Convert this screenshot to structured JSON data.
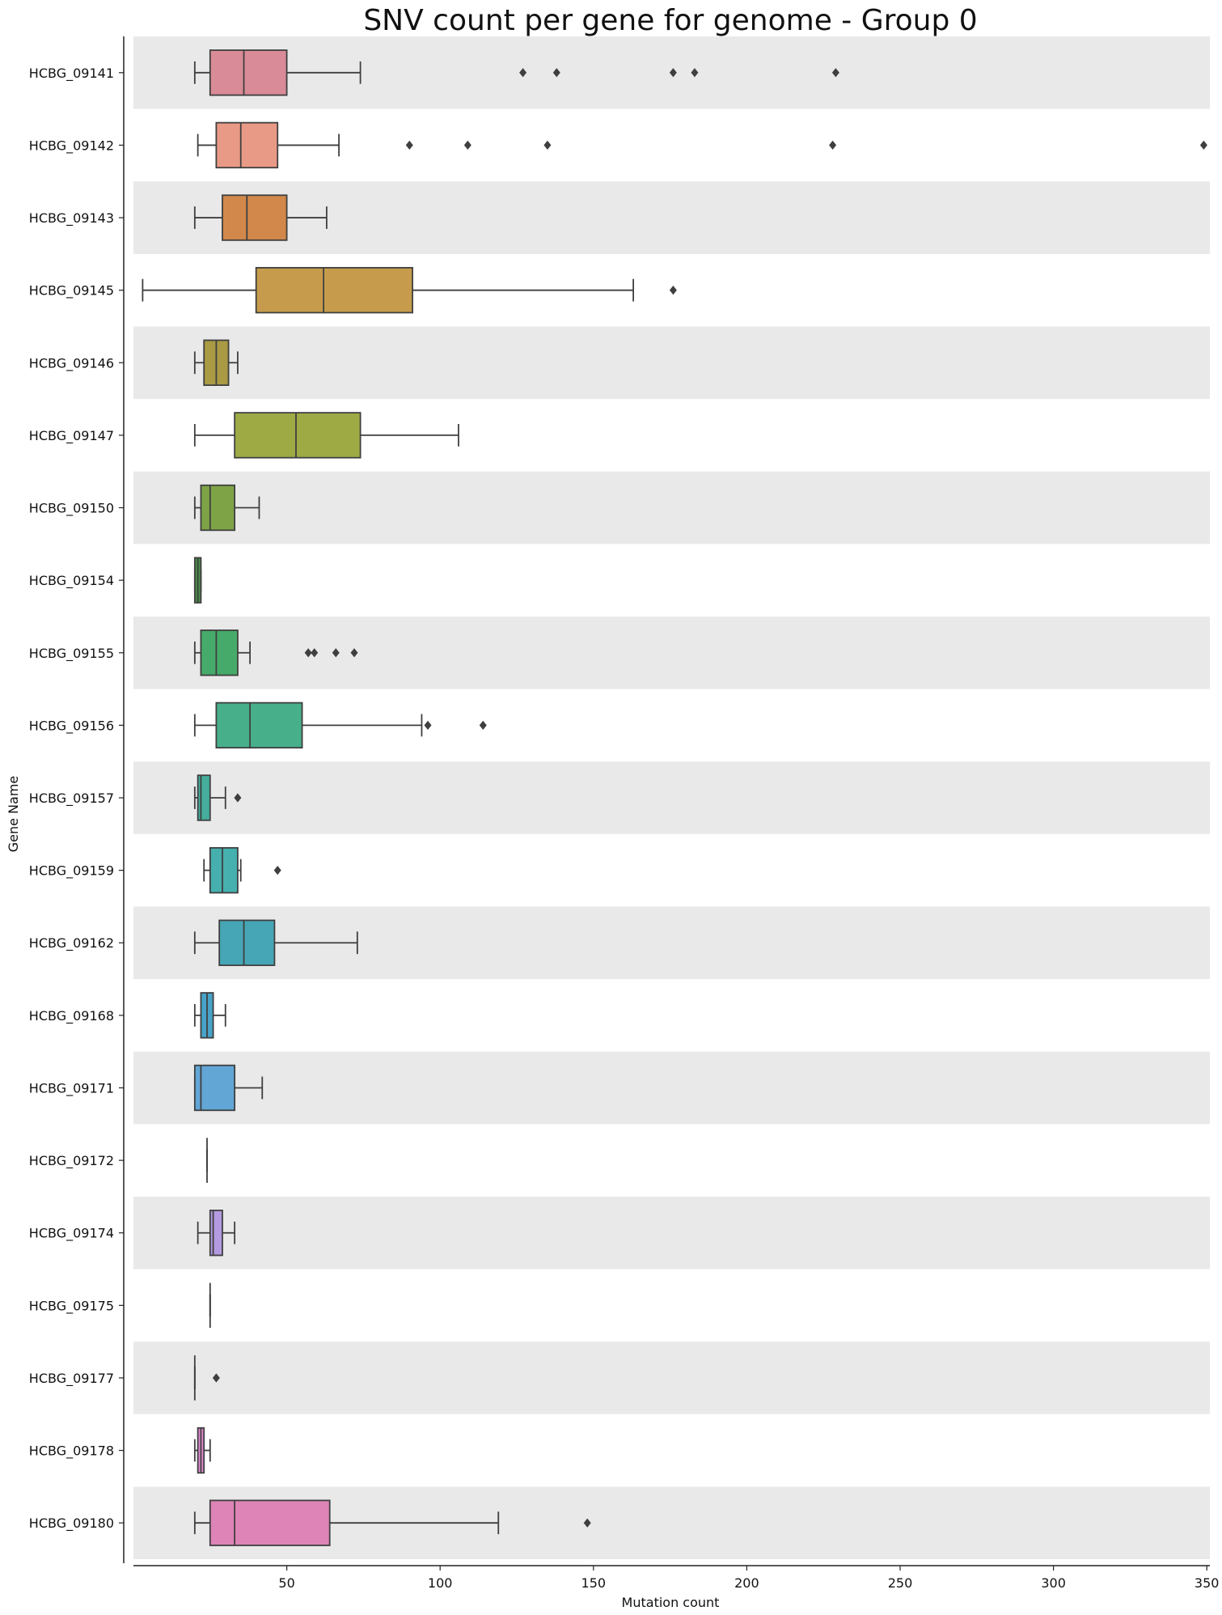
{
  "chart_data": {
    "type": "box",
    "title": "SNV count per gene for genome - Group 0",
    "xlabel": "Mutation count",
    "ylabel": "Gene Name",
    "xlim": [
      0,
      351
    ],
    "xticks": [
      50,
      100,
      150,
      200,
      250,
      300,
      350
    ],
    "grid": false,
    "series": [
      {
        "name": "HCBG_09141",
        "whislo": 20,
        "q1": 25,
        "median": 36,
        "q3": 50,
        "whishi": 74,
        "fliers": [
          127,
          138,
          176,
          183,
          229
        ],
        "color": "#d98b97"
      },
      {
        "name": "HCBG_09142",
        "whislo": 21,
        "q1": 27,
        "median": 35,
        "q3": 47,
        "whishi": 67,
        "fliers": [
          90,
          109,
          135,
          228,
          349
        ],
        "color": "#e89a86"
      },
      {
        "name": "HCBG_09143",
        "whislo": 20,
        "q1": 29,
        "median": 37,
        "q3": 50,
        "whishi": 63,
        "fliers": [],
        "color": "#d1884a"
      },
      {
        "name": "HCBG_09145",
        "whislo": 3,
        "q1": 40,
        "median": 62,
        "q3": 91,
        "whishi": 163,
        "fliers": [
          176
        ],
        "color": "#c69c4c"
      },
      {
        "name": "HCBG_09146",
        "whislo": 20,
        "q1": 23,
        "median": 27,
        "q3": 31,
        "whishi": 34,
        "fliers": [],
        "color": "#aa9a44"
      },
      {
        "name": "HCBG_09147",
        "whislo": 20,
        "q1": 33,
        "median": 53,
        "q3": 74,
        "whishi": 106,
        "fliers": [],
        "color": "#9eab45"
      },
      {
        "name": "HCBG_09150",
        "whislo": 20,
        "q1": 22,
        "median": 25,
        "q3": 33,
        "whishi": 41,
        "fliers": [],
        "color": "#7ea347"
      },
      {
        "name": "HCBG_09154",
        "whislo": 20,
        "q1": 20,
        "median": 21,
        "q3": 22,
        "whishi": 22,
        "fliers": [],
        "color": "#4a8f4a"
      },
      {
        "name": "HCBG_09155",
        "whislo": 20,
        "q1": 22,
        "median": 27,
        "q3": 34,
        "whishi": 38,
        "fliers": [
          57,
          59,
          66,
          72
        ],
        "color": "#46ab6a"
      },
      {
        "name": "HCBG_09156",
        "whislo": 20,
        "q1": 27,
        "median": 38,
        "q3": 55,
        "whishi": 94,
        "fliers": [
          96,
          114
        ],
        "color": "#47b08a"
      },
      {
        "name": "HCBG_09157",
        "whislo": 20,
        "q1": 21,
        "median": 22,
        "q3": 25,
        "whishi": 30,
        "fliers": [
          34
        ],
        "color": "#45ad9c"
      },
      {
        "name": "HCBG_09159",
        "whislo": 23,
        "q1": 25,
        "median": 29,
        "q3": 34,
        "whishi": 35,
        "fliers": [
          47
        ],
        "color": "#45b0ad"
      },
      {
        "name": "HCBG_09162",
        "whislo": 20,
        "q1": 28,
        "median": 36,
        "q3": 46,
        "whishi": 73,
        "fliers": [],
        "color": "#46a6b6"
      },
      {
        "name": "HCBG_09168",
        "whislo": 20,
        "q1": 22,
        "median": 24,
        "q3": 26,
        "whishi": 30,
        "fliers": [],
        "color": "#47a3c8"
      },
      {
        "name": "HCBG_09171",
        "whislo": 20,
        "q1": 20,
        "median": 22,
        "q3": 33,
        "whishi": 42,
        "fliers": [],
        "color": "#62a6d6"
      },
      {
        "name": "HCBG_09172",
        "whislo": 24,
        "q1": 24,
        "median": 24,
        "q3": 24,
        "whishi": 24,
        "fliers": [],
        "color": "#8b9bdf"
      },
      {
        "name": "HCBG_09174",
        "whislo": 21,
        "q1": 25,
        "median": 26,
        "q3": 29,
        "whishi": 33,
        "fliers": [],
        "color": "#b49ae0"
      },
      {
        "name": "HCBG_09175",
        "whislo": 25,
        "q1": 25,
        "median": 25,
        "q3": 25,
        "whishi": 25,
        "fliers": [],
        "color": "#c997df"
      },
      {
        "name": "HCBG_09177",
        "whislo": 20,
        "q1": 20,
        "median": 20,
        "q3": 20,
        "whishi": 20,
        "fliers": [
          27
        ],
        "color": "#dc90d8"
      },
      {
        "name": "HCBG_09178",
        "whislo": 20,
        "q1": 21,
        "median": 22,
        "q3": 23,
        "whishi": 25,
        "fliers": [],
        "color": "#e08bcf"
      },
      {
        "name": "HCBG_09180",
        "whislo": 20,
        "q1": 25,
        "median": 33,
        "q3": 64,
        "whishi": 119,
        "fliers": [
          148
        ],
        "color": "#de84b7"
      }
    ]
  }
}
